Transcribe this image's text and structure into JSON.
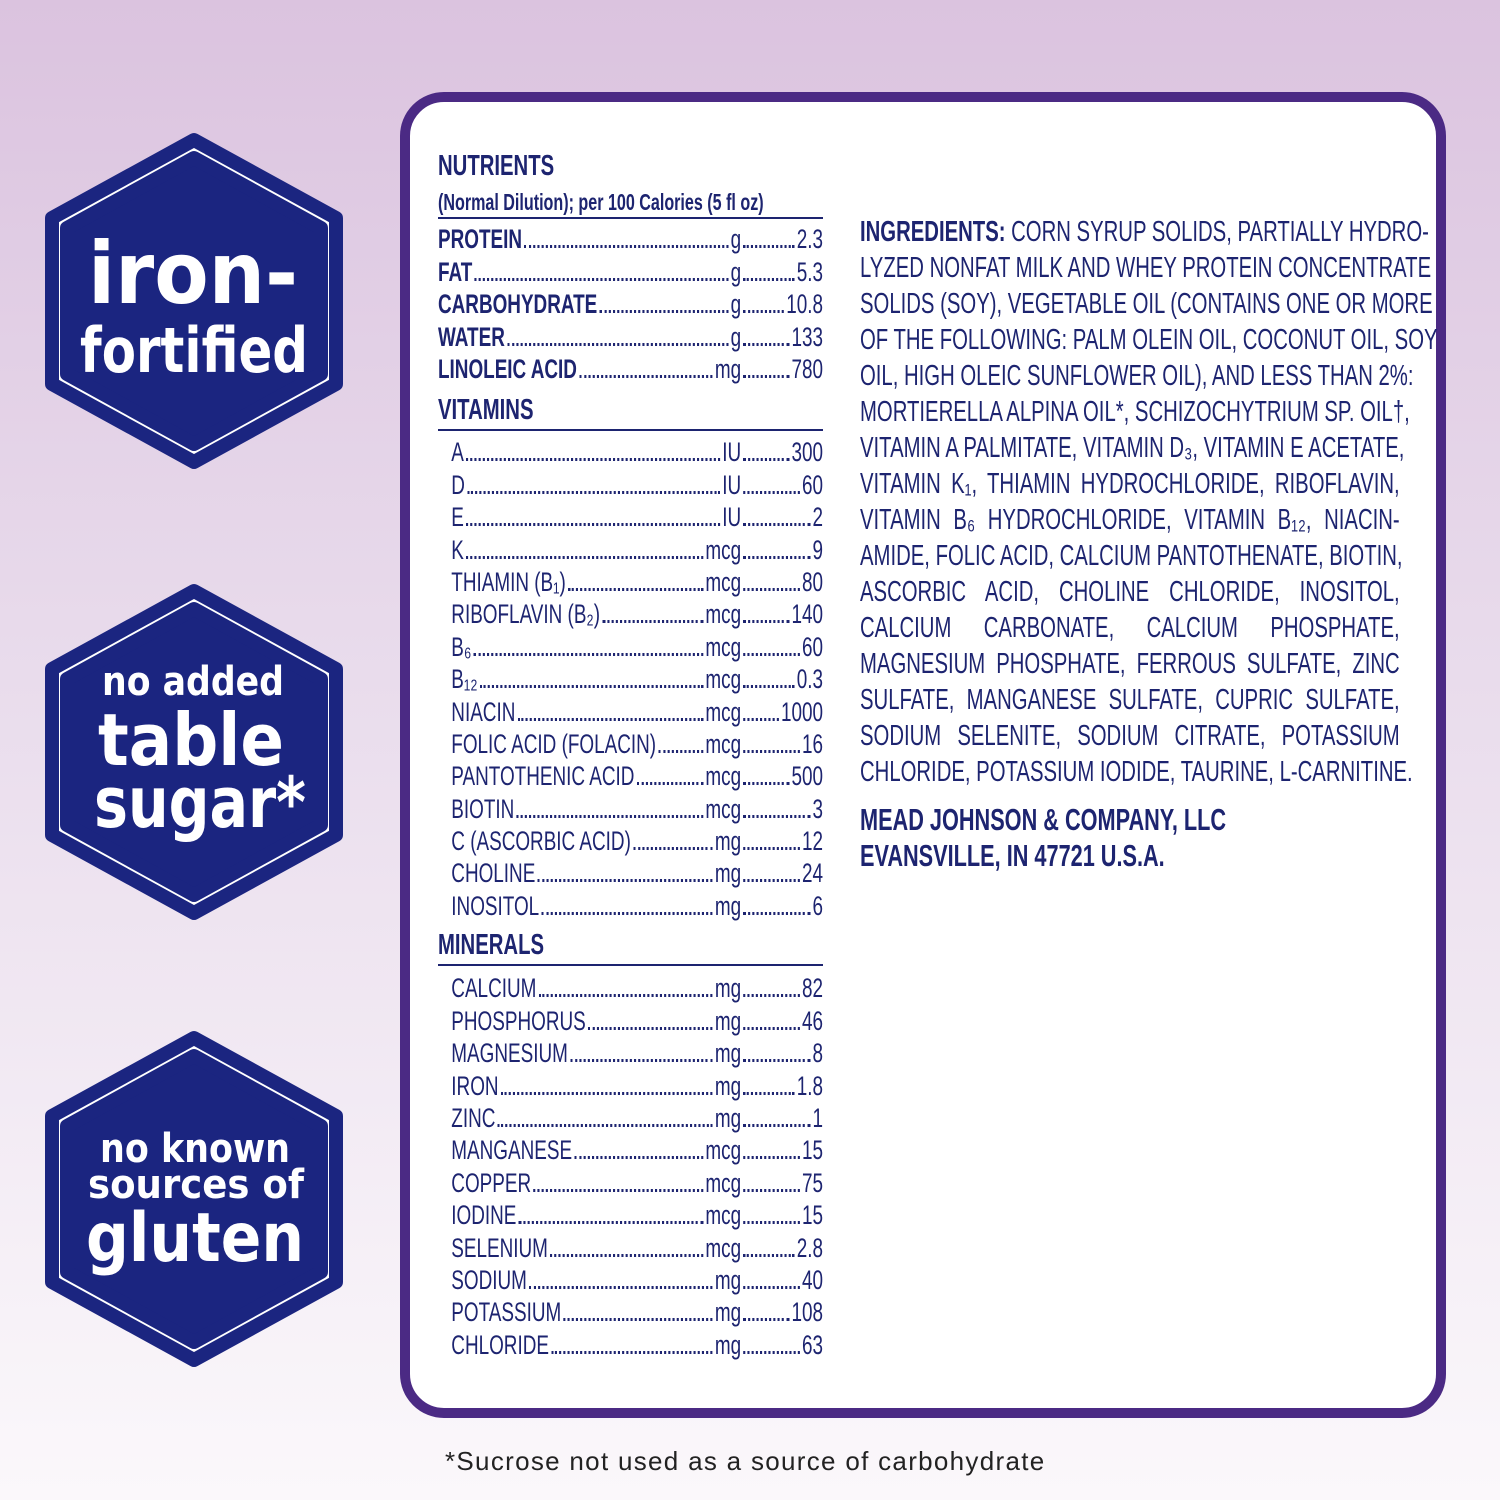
{
  "colors": {
    "navy": "#1d2470",
    "badge_fill": "#1b2580",
    "card_border": "#4b2a84",
    "background_top": "#dbc3df"
  },
  "badges": [
    {
      "lines": [
        "iron-",
        "fortified"
      ]
    },
    {
      "lines": [
        "no added",
        "table",
        "sugar*"
      ]
    },
    {
      "lines": [
        "no known",
        "sources of",
        "gluten"
      ]
    }
  ],
  "nutrients": {
    "title": "NUTRIENTS",
    "subtitle": "(Normal Dilution); per 100 Calories (5 fl oz)",
    "rows": [
      {
        "name": "PROTEIN",
        "unit": "g",
        "value": "2.3"
      },
      {
        "name": "FAT",
        "unit": "g",
        "value": "5.3"
      },
      {
        "name": "CARBOHYDRATE",
        "unit": "g",
        "value": "10.8"
      },
      {
        "name": "WATER",
        "unit": "g",
        "value": "133"
      },
      {
        "name": "LINOLEIC ACID",
        "unit": "mg",
        "value": "780"
      }
    ]
  },
  "vitamins": {
    "title": "VITAMINS",
    "rows": [
      {
        "name": "A",
        "unit": "IU",
        "value": "300"
      },
      {
        "name": "D",
        "unit": "IU",
        "value": "60"
      },
      {
        "name": "E",
        "unit": "IU",
        "value": "2"
      },
      {
        "name": "K",
        "unit": "mcg",
        "value": "9"
      },
      {
        "name": "THIAMIN (B₁)",
        "unit": "mcg",
        "value": "80"
      },
      {
        "name": "RIBOFLAVIN (B₂)",
        "unit": "mcg",
        "value": "140"
      },
      {
        "name": "B₆",
        "unit": "mcg",
        "value": "60"
      },
      {
        "name": "B₁₂",
        "unit": "mcg",
        "value": "0.3"
      },
      {
        "name": "NIACIN",
        "unit": "mcg",
        "value": "1000"
      },
      {
        "name": "FOLIC ACID (FOLACIN)",
        "unit": "mcg",
        "value": "16"
      },
      {
        "name": "PANTOTHENIC ACID",
        "unit": "mcg",
        "value": "500"
      },
      {
        "name": "BIOTIN",
        "unit": "mcg",
        "value": "3"
      },
      {
        "name": "C (ASCORBIC ACID)",
        "unit": "mg",
        "value": "12"
      },
      {
        "name": "CHOLINE",
        "unit": "mg",
        "value": "24"
      },
      {
        "name": "INOSITOL",
        "unit": "mg",
        "value": "6"
      }
    ]
  },
  "minerals": {
    "title": "MINERALS",
    "rows": [
      {
        "name": "CALCIUM",
        "unit": "mg",
        "value": "82"
      },
      {
        "name": "PHOSPHORUS",
        "unit": "mg",
        "value": "46"
      },
      {
        "name": "MAGNESIUM",
        "unit": "mg",
        "value": "8"
      },
      {
        "name": "IRON",
        "unit": "mg",
        "value": "1.8"
      },
      {
        "name": "ZINC",
        "unit": "mg",
        "value": "1"
      },
      {
        "name": "MANGANESE",
        "unit": "mcg",
        "value": "15"
      },
      {
        "name": "COPPER",
        "unit": "mcg",
        "value": "75"
      },
      {
        "name": "IODINE",
        "unit": "mcg",
        "value": "15"
      },
      {
        "name": "SELENIUM",
        "unit": "mcg",
        "value": "2.8"
      },
      {
        "name": "SODIUM",
        "unit": "mg",
        "value": "40"
      },
      {
        "name": "POTASSIUM",
        "unit": "mg",
        "value": "108"
      },
      {
        "name": "CHLORIDE",
        "unit": "mg",
        "value": "63"
      }
    ]
  },
  "ingredients": {
    "label": "INGREDIENTS:",
    "lines": [
      " CORN SYRUP SOLIDS, PARTIALLY HYDRO-",
      "LYZED NONFAT MILK AND WHEY PROTEIN CONCENTRATE",
      "SOLIDS (SOY), VEGETABLE OIL (CONTAINS ONE OR MORE",
      "OF THE FOLLOWING: PALM OLEIN OIL, COCONUT OIL, SOY",
      "OIL, HIGH OLEIC SUNFLOWER OIL), AND LESS THAN 2%:",
      "MORTIERELLA ALPINA OIL*, SCHIZOCHYTRIUM SP. OIL†,",
      "VITAMIN A PALMITATE, VITAMIN D₃, VITAMIN E ACETATE,",
      "VITAMIN K₁, THIAMIN HYDROCHLORIDE, RIBOFLAVIN,",
      "VITAMIN B₆ HYDROCHLORIDE, VITAMIN B₁₂, NIACIN-",
      "AMIDE, FOLIC ACID, CALCIUM PANTOTHENATE, BIOTIN,",
      "ASCORBIC ACID, CHOLINE CHLORIDE, INOSITOL,",
      "CALCIUM CARBONATE, CALCIUM PHOSPHATE,",
      "MAGNESIUM PHOSPHATE, FERROUS SULFATE, ZINC",
      "SULFATE, MANGANESE SULFATE, CUPRIC SULFATE,",
      "SODIUM SELENITE, SODIUM CITRATE, POTASSIUM",
      "CHLORIDE, POTASSIUM IODIDE, TAURINE, L-CARNITINE."
    ]
  },
  "manufacturer": {
    "name": "MEAD JOHNSON & COMPANY, LLC",
    "address": "EVANSVILLE, IN 47721 U.S.A."
  },
  "footnote": "*Sucrose not used as a source of carbohydrate"
}
